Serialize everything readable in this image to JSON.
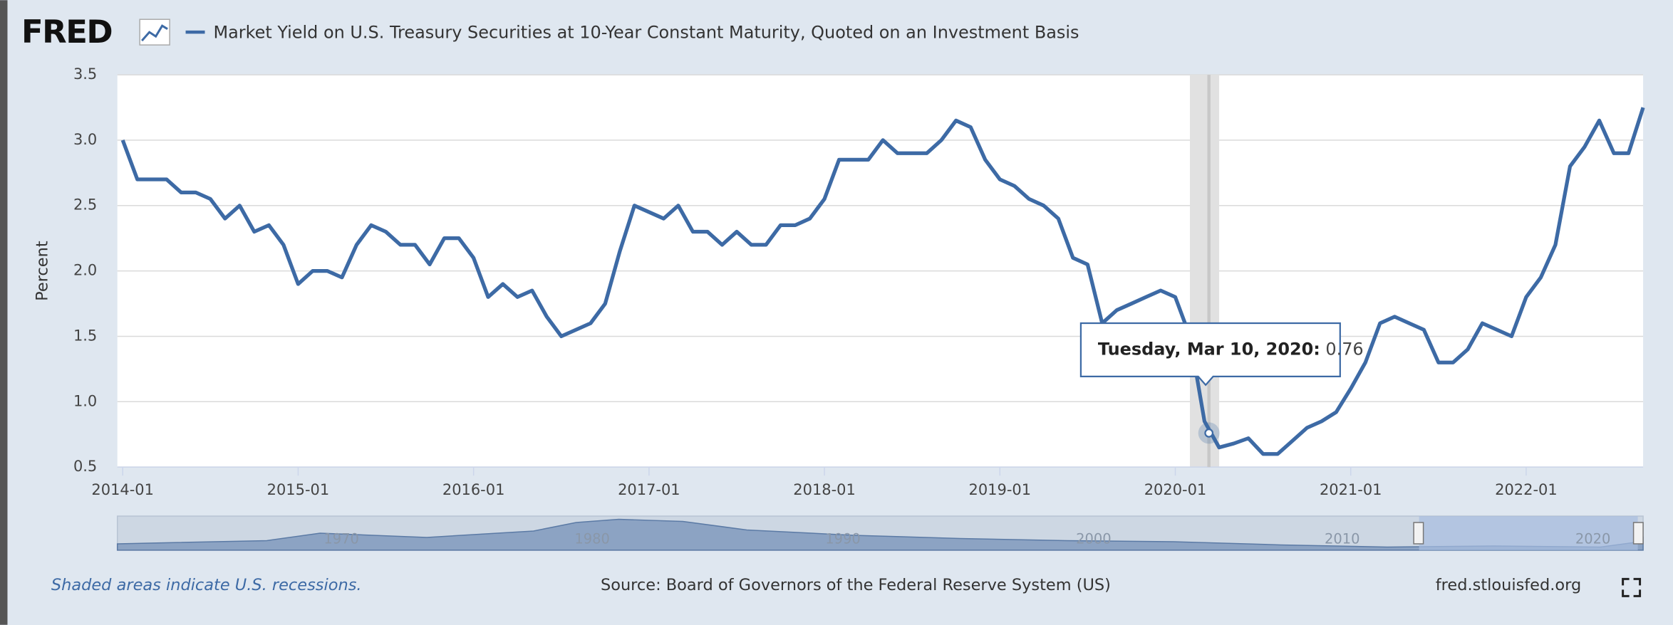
{
  "logo": "FRED",
  "chart_data": {
    "type": "line",
    "title": "Market Yield on U.S. Treasury Securities at 10-Year Constant Maturity, Quoted on an Investment Basis",
    "y_label": "Percent",
    "x": [
      "2014-01",
      "2014-02",
      "2014-03",
      "2014-04",
      "2014-05",
      "2014-06",
      "2014-07",
      "2014-08",
      "2014-09",
      "2014-10",
      "2014-11",
      "2014-12",
      "2015-01",
      "2015-02",
      "2015-03",
      "2015-04",
      "2015-05",
      "2015-06",
      "2015-07",
      "2015-08",
      "2015-09",
      "2015-10",
      "2015-11",
      "2015-12",
      "2016-01",
      "2016-02",
      "2016-03",
      "2016-04",
      "2016-05",
      "2016-06",
      "2016-07",
      "2016-08",
      "2016-09",
      "2016-10",
      "2016-11",
      "2016-12",
      "2017-01",
      "2017-02",
      "2017-03",
      "2017-04",
      "2017-05",
      "2017-06",
      "2017-07",
      "2017-08",
      "2017-09",
      "2017-10",
      "2017-11",
      "2017-12",
      "2018-01",
      "2018-02",
      "2018-03",
      "2018-04",
      "2018-05",
      "2018-06",
      "2018-07",
      "2018-08",
      "2018-09",
      "2018-10",
      "2018-11",
      "2018-12",
      "2019-01",
      "2019-02",
      "2019-03",
      "2019-04",
      "2019-05",
      "2019-06",
      "2019-07",
      "2019-08",
      "2019-09",
      "2019-10",
      "2019-11",
      "2019-12",
      "2020-01",
      "2020-02",
      "2020-03",
      "2020-04",
      "2020-05",
      "2020-06",
      "2020-07",
      "2020-08",
      "2020-09",
      "2020-10",
      "2020-11",
      "2020-12",
      "2021-01",
      "2021-02",
      "2021-03",
      "2021-04",
      "2021-05",
      "2021-06",
      "2021-07",
      "2021-08",
      "2021-09",
      "2021-10",
      "2021-11",
      "2021-12",
      "2022-01",
      "2022-02",
      "2022-03",
      "2022-04",
      "2022-05",
      "2022-06",
      "2022-07",
      "2022-08",
      "2022-09"
    ],
    "series": [
      {
        "name": "Market Yield on U.S. Treasury Securities at 10-Year Constant Maturity, Quoted on an Investment Basis",
        "color": "#3d6aa5",
        "values": [
          3.0,
          2.7,
          2.7,
          2.7,
          2.6,
          2.6,
          2.55,
          2.4,
          2.5,
          2.3,
          2.35,
          2.2,
          1.9,
          2.0,
          2.0,
          1.95,
          2.2,
          2.35,
          2.3,
          2.2,
          2.2,
          2.05,
          2.25,
          2.25,
          2.1,
          1.8,
          1.9,
          1.8,
          1.85,
          1.65,
          1.5,
          1.55,
          1.6,
          1.75,
          2.15,
          2.5,
          2.45,
          2.4,
          2.5,
          2.3,
          2.3,
          2.2,
          2.3,
          2.2,
          2.2,
          2.35,
          2.35,
          2.4,
          2.55,
          2.85,
          2.85,
          2.85,
          3.0,
          2.9,
          2.9,
          2.9,
          3.0,
          3.15,
          3.1,
          2.85,
          2.7,
          2.65,
          2.55,
          2.5,
          2.4,
          2.1,
          2.05,
          1.6,
          1.7,
          1.75,
          1.8,
          1.85,
          1.8,
          1.5,
          0.85,
          0.65,
          0.68,
          0.72,
          0.6,
          0.6,
          0.7,
          0.8,
          0.85,
          0.92,
          1.1,
          1.3,
          1.6,
          1.65,
          1.6,
          1.55,
          1.3,
          1.3,
          1.4,
          1.6,
          1.55,
          1.5,
          1.8,
          1.95,
          2.2,
          2.8,
          2.95,
          3.15,
          2.9,
          2.9,
          3.25
        ]
      }
    ],
    "xlim": [
      "2014-01",
      "2022-09"
    ],
    "xticks": [
      "2014-01",
      "2015-01",
      "2016-01",
      "2017-01",
      "2018-01",
      "2019-01",
      "2020-01",
      "2021-01",
      "2022-01"
    ],
    "ylim": [
      0.5,
      3.5
    ],
    "yticks": [
      0.5,
      {
        "value": 1,
        "label": "1.0"
      },
      1.5,
      {
        "value": 2,
        "label": "2.0"
      },
      2.5,
      {
        "value": 3,
        "label": "3.0"
      },
      3.5
    ],
    "grid": true,
    "recessions": [
      {
        "start": "2020-02",
        "end": "2020-04"
      }
    ],
    "tooltip": {
      "x": "2020-03",
      "label": "Tuesday, Mar 10, 2020:",
      "value": 0.76
    },
    "navigator": {
      "labels": [
        "1970",
        "1980",
        "1990",
        "2000",
        "2010",
        "2020"
      ]
    },
    "footer": {
      "note": "Shaded areas indicate U.S. recessions.",
      "source": "Source: Board of Governors of the Federal Reserve System (US)",
      "site": "fred.stlouisfed.org"
    }
  }
}
